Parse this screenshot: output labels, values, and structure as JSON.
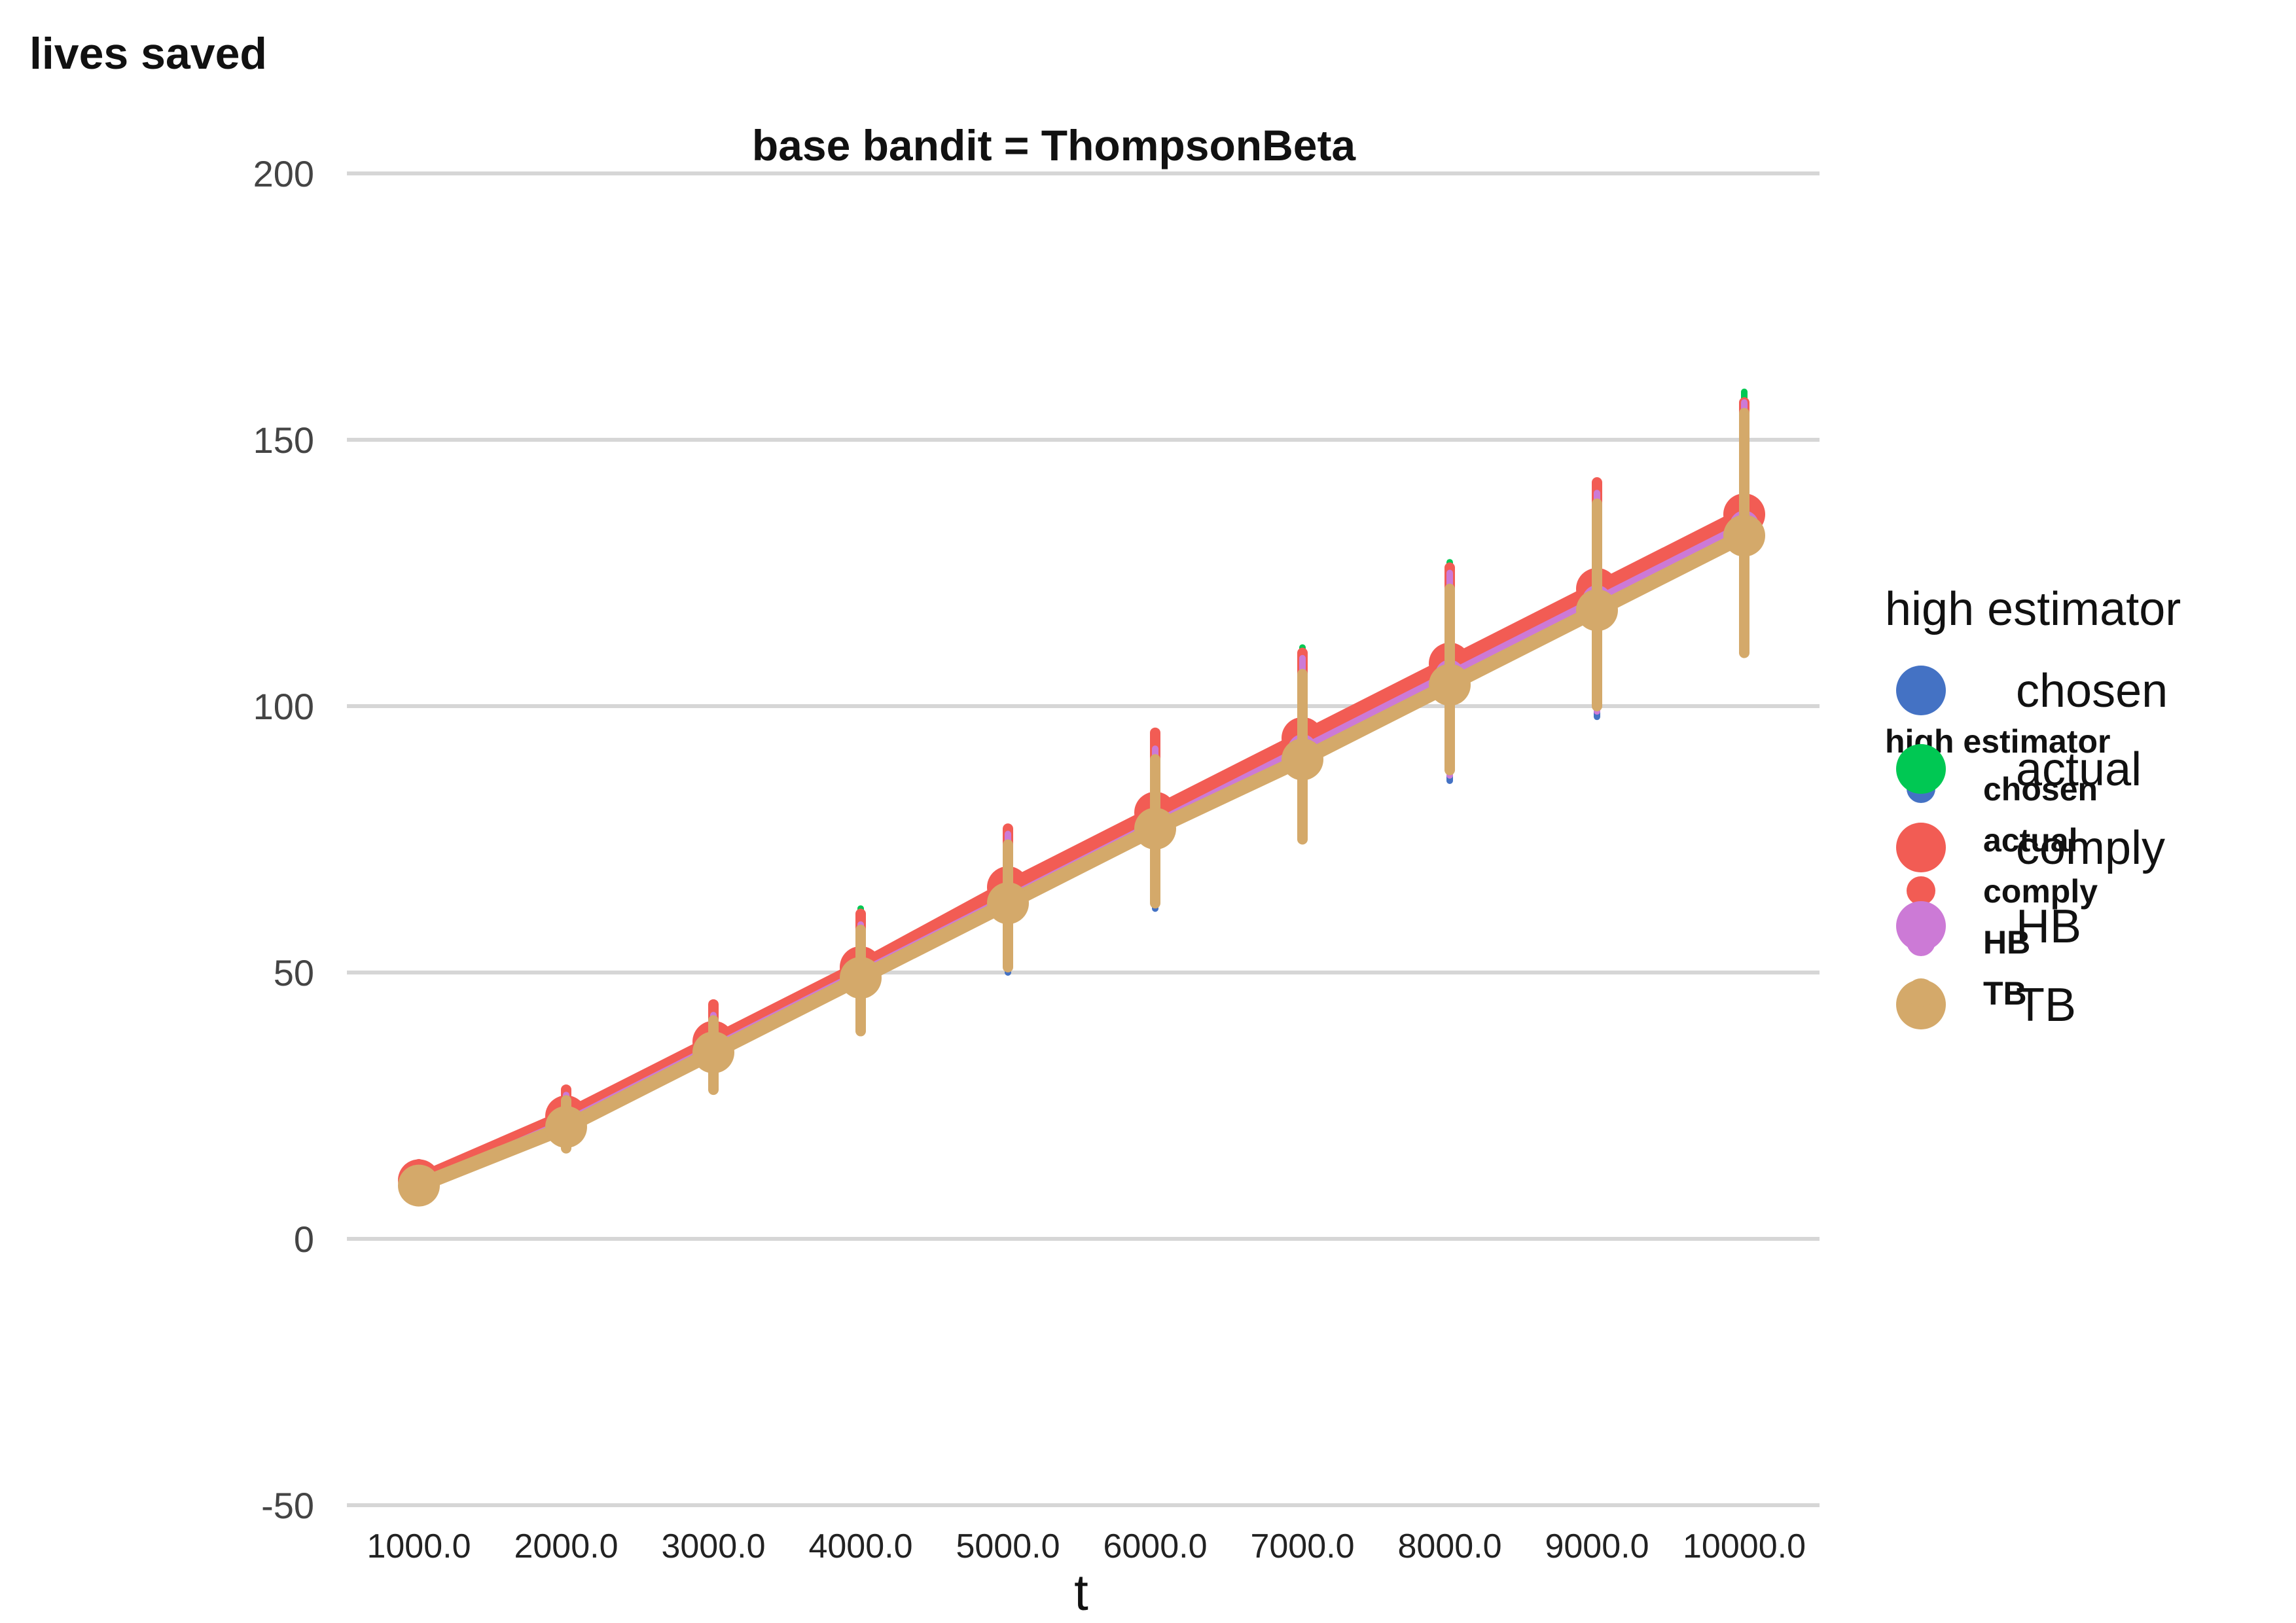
{
  "chart_data": {
    "type": "line",
    "title": "base bandit = ThompsonBeta",
    "ylabel": "lives saved",
    "xlabel": "t",
    "ylim": [
      -50,
      200
    ],
    "yticks": [
      "-50",
      "0",
      "50",
      "100",
      "150",
      "200"
    ],
    "ytick_values": [
      -50,
      0,
      50,
      100,
      150,
      200
    ],
    "x": [
      1000,
      2000,
      3000,
      4000,
      5000,
      6000,
      7000,
      8000,
      9000,
      10000
    ],
    "xtick_labels": [
      "1000.0",
      "2000.0",
      "3000.0",
      "4000.0",
      "5000.0",
      "6000.0",
      "7000.0",
      "8000.0",
      "9000.0",
      "10000.0"
    ],
    "grid": true,
    "legend_position": "right",
    "legend_title": "high estimator",
    "series": [
      {
        "name": "chosen",
        "color": "#4472C4",
        "values": [
          10,
          22,
          35,
          49,
          63,
          77,
          91,
          105,
          119,
          133
        ],
        "err_low": [
          7,
          17,
          28,
          39,
          50,
          62,
          75,
          86,
          98,
          110
        ],
        "err_high": [
          13,
          27,
          42,
          59,
          75,
          92,
          108,
          124,
          140,
          156
        ]
      },
      {
        "name": "actual",
        "color": "#00C853",
        "values": [
          11,
          23,
          37,
          51,
          66,
          80,
          94,
          108,
          122,
          136
        ],
        "err_low": [
          8,
          18,
          30,
          41,
          53,
          65,
          78,
          89,
          101,
          113
        ],
        "err_high": [
          14,
          28,
          44,
          62,
          77,
          94,
          111,
          127,
          142,
          159
        ]
      },
      {
        "name": "comply",
        "color": "#F25C54",
        "values": [
          11,
          23,
          37,
          51,
          66,
          80,
          94,
          108,
          122,
          136
        ],
        "err_low": [
          8,
          18,
          30,
          41,
          53,
          65,
          78,
          89,
          101,
          113
        ],
        "err_high": [
          14,
          28,
          44,
          61,
          77,
          95,
          110,
          126,
          142,
          157
        ]
      },
      {
        "name": "HB",
        "color": "#CC7AD6",
        "values": [
          10,
          22,
          36,
          50,
          64,
          78,
          92,
          106,
          120,
          134
        ],
        "err_low": [
          7,
          17,
          29,
          40,
          51,
          63,
          76,
          87,
          99,
          111
        ],
        "err_high": [
          13,
          27,
          42,
          59,
          76,
          92,
          109,
          125,
          140,
          157
        ]
      },
      {
        "name": "TB",
        "color": "#D4A96A",
        "values": [
          10,
          21,
          35,
          49,
          63,
          77,
          90,
          104,
          118,
          132
        ],
        "err_low": [
          8,
          17,
          28,
          39,
          51,
          63,
          75,
          88,
          100,
          110
        ],
        "err_high": [
          12,
          26,
          41,
          58,
          74,
          90,
          106,
          122,
          138,
          155
        ]
      }
    ]
  }
}
